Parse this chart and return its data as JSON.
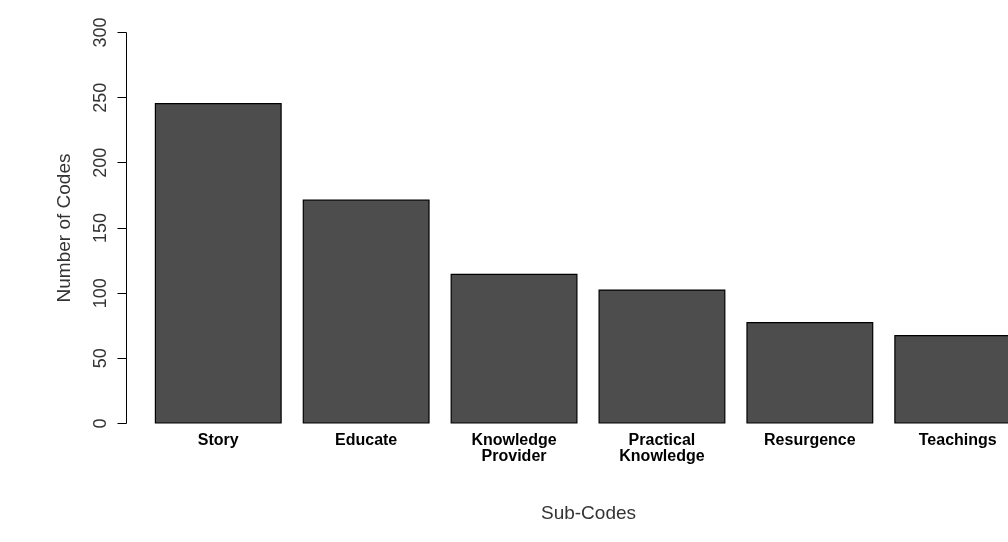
{
  "chart_data": {
    "type": "bar",
    "xlabel": "Sub-Codes",
    "ylabel": "Number of Codes",
    "categories": [
      "Story",
      "Educate",
      "Knowledge Provider",
      "Practical Knowledge",
      "Resurgence",
      "Teachings"
    ],
    "values": [
      245,
      171,
      114,
      102,
      77,
      67
    ],
    "color": "#4d4d4d",
    "ylim": [
      0,
      300
    ],
    "yticks": [
      0,
      50,
      100,
      150,
      200,
      250,
      300
    ],
    "grid": false
  }
}
